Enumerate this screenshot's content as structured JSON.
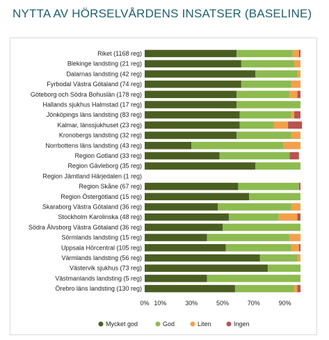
{
  "title": "NYTTA AV HÖRSELVÅRDENS INSATSER (BASELINE)",
  "chart_data": {
    "type": "bar",
    "orientation": "horizontal",
    "stacked": true,
    "categories": [
      "Riket (1168 reg)",
      "Blekinge landsting (21 reg)",
      "Dalarnas landsting (42 reg)",
      "Fyrbodal Västra Götaland (74 reg)",
      "Göteborg och Södra Bohuslän (178 reg)",
      "Hallands sjukhus Halmstad (17 reg)",
      "Jönköpings läns landsting (83 reg)",
      "Kalmar, länssjukhuset (23 reg)",
      "Kronobergs landsting (32 reg)",
      "Norrbottens läns landsting (43 reg)",
      "Region Gotland (33 reg)",
      "Region Gävleborg (35 reg)",
      "Region Jämtland Härjedalen (1 reg)",
      "Region Skåne (67 reg)",
      "Region Östergötland (15 reg)",
      "Skaraborg Västra Götaland (36 reg)",
      "Stockholm Karolinska (48 reg)",
      "Södra Älvsborg Västra Götaland (36 reg)",
      "Sörmlands landsting (15 reg)",
      "Uppsala Hörcentral (105 reg)",
      "Värmlands landsting (56 reg)",
      "Västervik sjukhus (73 reg)",
      "Västmanlands landsting (5 reg)",
      "Örebro läns landsting (130 reg)"
    ],
    "series": [
      {
        "name": "Mycket god",
        "color": "#4b5e21",
        "values": [
          59,
          62,
          71,
          62,
          59,
          59,
          61,
          61,
          59,
          30,
          48,
          71,
          0,
          60,
          67,
          47,
          54,
          50,
          40,
          52,
          74,
          79,
          40,
          58
        ]
      },
      {
        "name": "God",
        "color": "#8dbb4f",
        "values": [
          36,
          34,
          27,
          32,
          34,
          41,
          33,
          22,
          35,
          59,
          45,
          29,
          0,
          39,
          33,
          47,
          32,
          50,
          53,
          42,
          24,
          21,
          60,
          38
        ]
      },
      {
        "name": "Liten",
        "color": "#f4a04a",
        "values": [
          4,
          4,
          2,
          6,
          5,
          0,
          2,
          9,
          6,
          11,
          0,
          0,
          0,
          0,
          0,
          6,
          12,
          0,
          7,
          5,
          2,
          0,
          0,
          2
        ]
      },
      {
        "name": "Ingen",
        "color": "#b85450",
        "values": [
          1,
          0,
          0,
          0,
          2,
          0,
          4,
          9,
          0,
          0,
          6,
          0,
          0,
          1,
          0,
          0,
          2,
          0,
          0,
          1,
          0,
          0,
          0,
          2
        ]
      }
    ],
    "x_ticks": [
      "0%",
      "10%",
      "30%",
      "50%",
      "70%",
      "90%"
    ],
    "x_tick_values": [
      0,
      10,
      30,
      50,
      70,
      90
    ],
    "xlim": [
      0,
      100
    ],
    "grid": false,
    "legend_position": "bottom"
  }
}
